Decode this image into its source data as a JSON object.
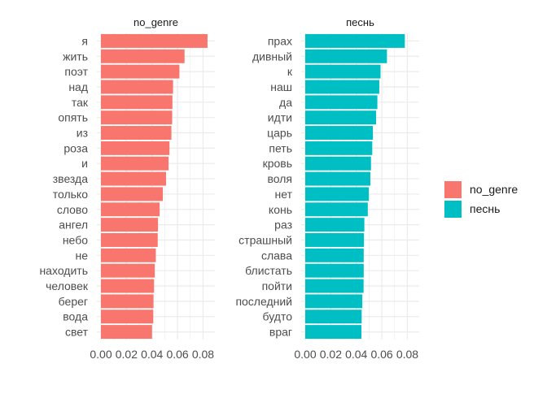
{
  "chart_data": {
    "type": "bar",
    "orientation": "horizontal",
    "grid": true,
    "legend_position": "right",
    "xlim": [
      0,
      0.088
    ],
    "x_ticks": [
      "0.00",
      "0.02",
      "0.04",
      "0.06",
      "0.08"
    ],
    "tick_values": [
      0,
      0.02,
      0.04,
      0.06,
      0.08
    ],
    "legend": [
      {
        "label": "no_genre",
        "color": "#F8766D"
      },
      {
        "label": "песнь",
        "color": "#00BFC4"
      }
    ],
    "panels": [
      {
        "title": "no_genre",
        "color": "#F8766D",
        "categories": [
          "я",
          "жить",
          "поэт",
          "над",
          "так",
          "опять",
          "из",
          "роза",
          "и",
          "звезда",
          "только",
          "слово",
          "ангел",
          "небо",
          "не",
          "находить",
          "человек",
          "берег",
          "вода",
          "свет"
        ],
        "values": [
          0.0835,
          0.0655,
          0.0615,
          0.0565,
          0.056,
          0.0558,
          0.0552,
          0.0537,
          0.053,
          0.051,
          0.0485,
          0.046,
          0.0447,
          0.0445,
          0.043,
          0.0422,
          0.0416,
          0.0412,
          0.041,
          0.04
        ]
      },
      {
        "title": "песнь",
        "color": "#00BFC4",
        "categories": [
          "прах",
          "дивный",
          "к",
          "наш",
          "да",
          "идти",
          "царь",
          "петь",
          "кровь",
          "воля",
          "нет",
          "конь",
          "раз",
          "страшный",
          "слава",
          "блистать",
          "пойти",
          "последний",
          "будто",
          "враг"
        ],
        "values": [
          0.078,
          0.064,
          0.059,
          0.058,
          0.0565,
          0.0555,
          0.053,
          0.0525,
          0.0515,
          0.051,
          0.0498,
          0.049,
          0.0463,
          0.046,
          0.0458,
          0.0458,
          0.0457,
          0.0447,
          0.0442,
          0.044
        ]
      }
    ]
  }
}
